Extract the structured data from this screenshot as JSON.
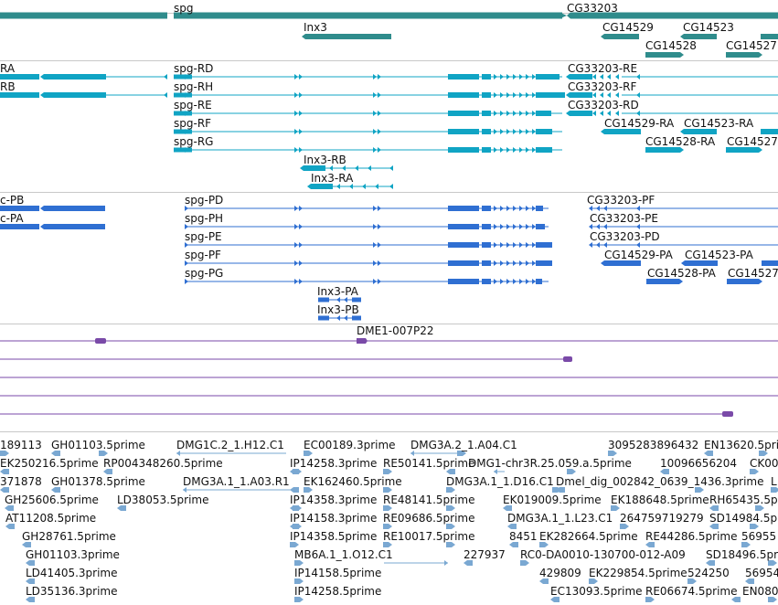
{
  "colors": {
    "gene": "#2f8c8c",
    "transcript": "#10a4c4",
    "protein": "#2f6fd2",
    "clone": "#7a4aa8",
    "est": "#7aa8d2",
    "separator": "#c8c8c8"
  },
  "genes": [
    {
      "label": "spg"
    },
    {
      "label": "CG33203"
    },
    {
      "label": "Inx3"
    },
    {
      "label": "CG14529"
    },
    {
      "label": "CG14523"
    },
    {
      "label": "CG14528"
    },
    {
      "label": "CG14527"
    }
  ],
  "transcripts": [
    {
      "label": "RA"
    },
    {
      "label": "RB"
    },
    {
      "label": "spg-RD"
    },
    {
      "label": "spg-RH"
    },
    {
      "label": "spg-RE"
    },
    {
      "label": "spg-RF"
    },
    {
      "label": "spg-RG"
    },
    {
      "label": "CG33203-RE"
    },
    {
      "label": "CG33203-RF"
    },
    {
      "label": "CG33203-RD"
    },
    {
      "label": "CG14529-RA"
    },
    {
      "label": "CG14523-RA"
    },
    {
      "label": "CG14528-RA"
    },
    {
      "label": "CG14527"
    },
    {
      "label": "Inx3-RB"
    },
    {
      "label": "Inx3-RA"
    }
  ],
  "proteins": [
    {
      "label": "c-PB"
    },
    {
      "label": "c-PA"
    },
    {
      "label": "spg-PD"
    },
    {
      "label": "spg-PH"
    },
    {
      "label": "spg-PE"
    },
    {
      "label": "spg-PF"
    },
    {
      "label": "spg-PG"
    },
    {
      "label": "CG33203-PF"
    },
    {
      "label": "CG33203-PE"
    },
    {
      "label": "CG33203-PD"
    },
    {
      "label": "CG14529-PA"
    },
    {
      "label": "CG14523-PA"
    },
    {
      "label": "CG14528-PA"
    },
    {
      "label": "CG14527"
    },
    {
      "label": "Inx3-PA"
    },
    {
      "label": "Inx3-PB"
    }
  ],
  "clones": [
    {
      "label": "DME1-007P22"
    }
  ],
  "ests": [
    {
      "label": "189113"
    },
    {
      "label": "GH01103.5prime"
    },
    {
      "label": "DMG1C.2_1.H12.C1"
    },
    {
      "label": "EC00189.3prime"
    },
    {
      "label": "DMG3A.2_1.A04.C1"
    },
    {
      "label": "3095283896432"
    },
    {
      "label": "EN13620.5prime"
    },
    {
      "label": "EK250216.5prime"
    },
    {
      "label": "RP004348260.5prime"
    },
    {
      "label": "IP14258.3prime"
    },
    {
      "label": "RE50141.5prime"
    },
    {
      "label": "DMG1-chr3R.25.059.a.5prime"
    },
    {
      "label": "10096656204"
    },
    {
      "label": "CK00"
    },
    {
      "label": "371878"
    },
    {
      "label": "GH01378.5prime"
    },
    {
      "label": "DMG3A.1_1.A03.R1"
    },
    {
      "label": "EK162460.5prime"
    },
    {
      "label": "DMG3A.1_1.D16.C1"
    },
    {
      "label": "Dmel_dig_002842_0639_1436.3prime"
    },
    {
      "label": "L"
    },
    {
      "label": "GH25606.5prime"
    },
    {
      "label": "LD38053.5prime"
    },
    {
      "label": "IP14358.3prime"
    },
    {
      "label": "RE48141.5prime"
    },
    {
      "label": "EK019009.5prime"
    },
    {
      "label": "EK188648.5prime"
    },
    {
      "label": "RH65435.5pr"
    },
    {
      "label": "AT11208.5prime"
    },
    {
      "label": "IP14158.3prime"
    },
    {
      "label": "RE09686.5prime"
    },
    {
      "label": "DMG3A.1_1.L23.C1"
    },
    {
      "label": "264759719279"
    },
    {
      "label": "SD14984.5pr"
    },
    {
      "label": "GH28761.5prime"
    },
    {
      "label": "IP14358.5prime"
    },
    {
      "label": "RE10017.5prime"
    },
    {
      "label": "8451"
    },
    {
      "label": "EK282664.5prime"
    },
    {
      "label": "RE44286.5prime"
    },
    {
      "label": "56955"
    },
    {
      "label": "GH01103.3prime"
    },
    {
      "label": "MB6A.1_1.O12.C1"
    },
    {
      "label": "227937"
    },
    {
      "label": "RC0-DA0010-130700-012-A09"
    },
    {
      "label": "SD18496.5pr"
    },
    {
      "label": "LD41405.3prime"
    },
    {
      "label": "IP14158.5prime"
    },
    {
      "label": "429809"
    },
    {
      "label": "EK229854.5prime"
    },
    {
      "label": "524250"
    },
    {
      "label": "56954"
    },
    {
      "label": "LD35136.3prime"
    },
    {
      "label": "IP14258.5prime"
    },
    {
      "label": "EC13093.5prime"
    },
    {
      "label": "RE06674.5prime"
    },
    {
      "label": "EN080"
    }
  ]
}
